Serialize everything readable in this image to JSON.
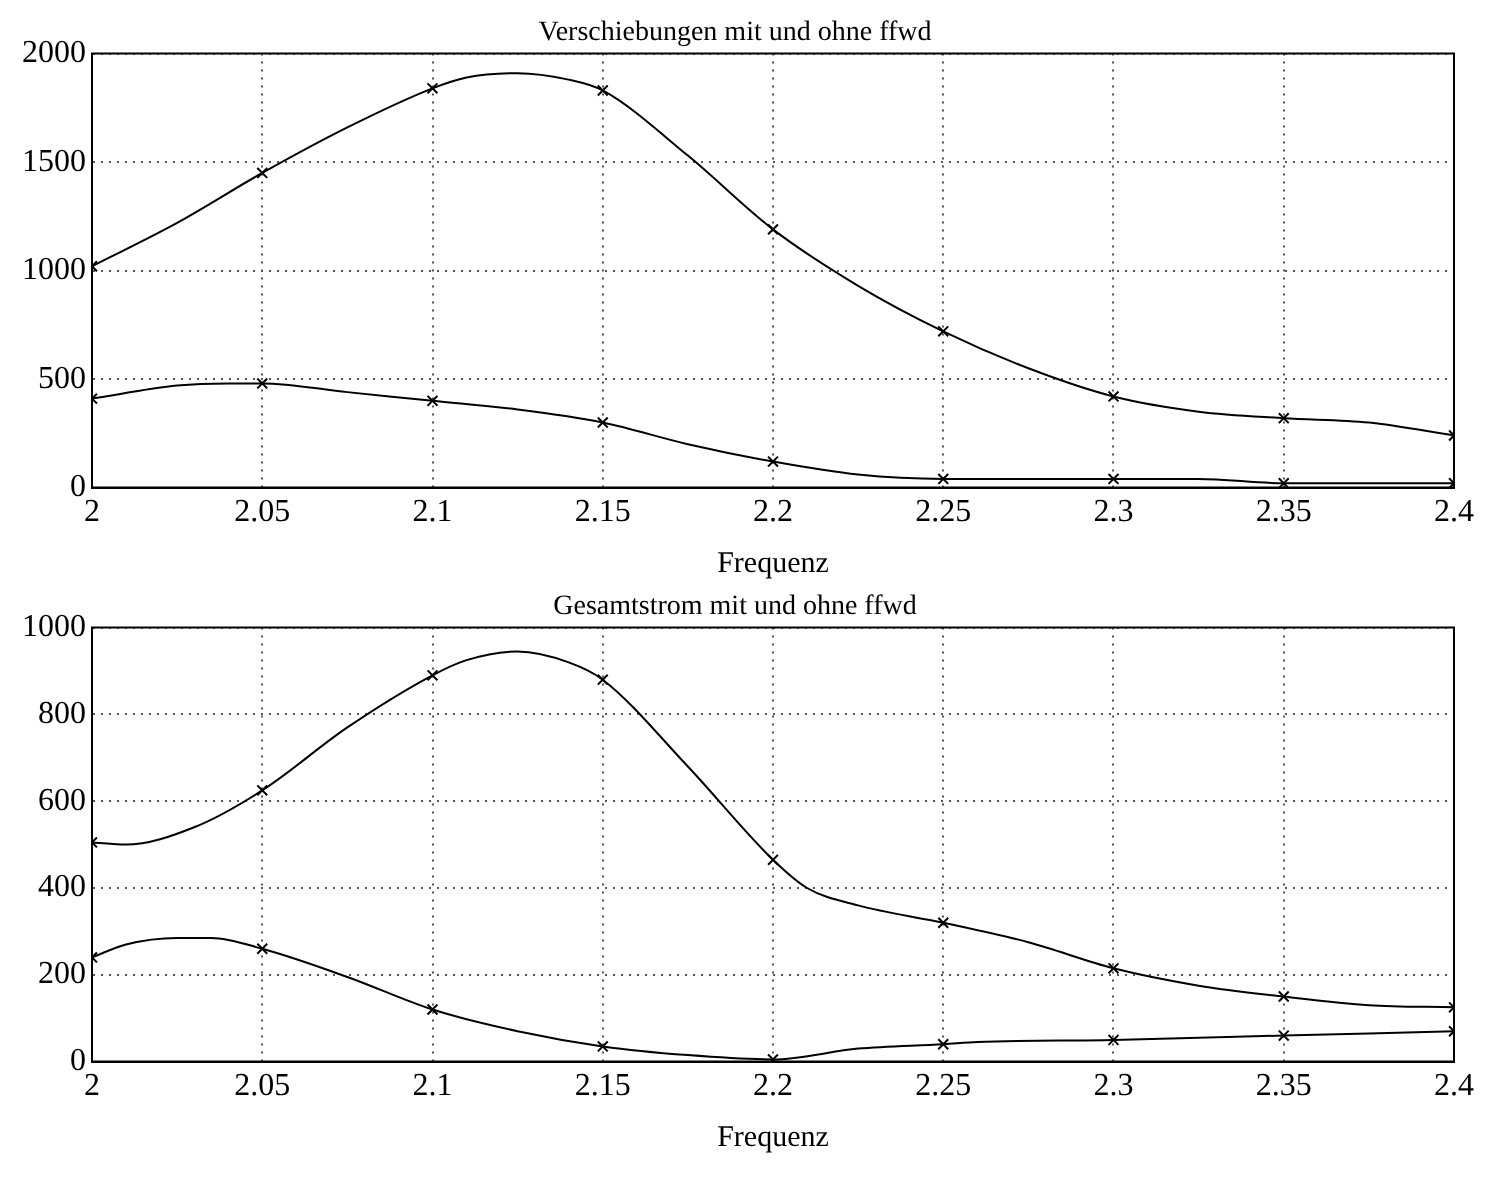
{
  "chart_data": [
    {
      "type": "line",
      "title": "Verschiebungen mit und ohne ffwd",
      "xlabel": "Frequenz",
      "xlim": [
        2,
        2.4
      ],
      "xticks": [
        2,
        2.05,
        2.1,
        2.15,
        2.2,
        2.25,
        2.3,
        2.35,
        2.4
      ],
      "ylim": [
        0,
        2000
      ],
      "yticks": [
        0,
        500,
        1000,
        1500,
        2000
      ],
      "grid": true,
      "series": [
        {
          "color": "#000000",
          "marker": "none",
          "x": [
            2,
            2.025,
            2.05,
            2.075,
            2.1,
            2.11,
            2.125,
            2.14,
            2.15,
            2.175,
            2.2,
            2.225,
            2.25,
            2.275,
            2.3,
            2.325,
            2.35,
            2.375,
            2.4
          ],
          "values": [
            1020,
            1220,
            1450,
            1660,
            1840,
            1890,
            1910,
            1880,
            1830,
            1530,
            1190,
            930,
            720,
            550,
            420,
            350,
            320,
            300,
            240
          ]
        },
        {
          "color": "#000000",
          "marker": "none",
          "x": [
            2,
            2.025,
            2.04,
            2.05,
            2.075,
            2.1,
            2.125,
            2.15,
            2.175,
            2.2,
            2.225,
            2.25,
            2.275,
            2.3,
            2.325,
            2.35,
            2.375,
            2.4
          ],
          "values": [
            410,
            470,
            480,
            480,
            440,
            400,
            360,
            300,
            200,
            120,
            60,
            40,
            40,
            40,
            40,
            20,
            20,
            20
          ]
        },
        {
          "type": "scatter",
          "color": "#000000",
          "marker": "cross",
          "x": [
            2,
            2.05,
            2.1,
            2.15,
            2.2,
            2.25,
            2.3,
            2.35,
            2.4
          ],
          "values": [
            1020,
            1450,
            1840,
            1830,
            1190,
            720,
            420,
            320,
            240
          ]
        },
        {
          "type": "scatter",
          "color": "#000000",
          "marker": "cross",
          "x": [
            2,
            2.05,
            2.1,
            2.15,
            2.2,
            2.25,
            2.3,
            2.35,
            2.4
          ],
          "values": [
            410,
            480,
            400,
            300,
            120,
            40,
            40,
            20,
            20
          ]
        }
      ]
    },
    {
      "type": "line",
      "title": "Gesamtstrom mit und ohne ffwd",
      "xlabel": "Frequenz",
      "xlim": [
        2,
        2.4
      ],
      "xticks": [
        2,
        2.05,
        2.1,
        2.15,
        2.2,
        2.25,
        2.3,
        2.35,
        2.4
      ],
      "ylim": [
        0,
        1000
      ],
      "yticks": [
        0,
        200,
        400,
        600,
        800,
        1000
      ],
      "grid": true,
      "series": [
        {
          "color": "#000000",
          "marker": "none",
          "x": [
            2,
            2.01,
            2.03,
            2.05,
            2.075,
            2.1,
            2.11,
            2.125,
            2.14,
            2.15,
            2.175,
            2.2,
            2.21,
            2.225,
            2.25,
            2.275,
            2.3,
            2.325,
            2.35,
            2.375,
            2.4
          ],
          "values": [
            505,
            500,
            540,
            625,
            770,
            890,
            925,
            945,
            920,
            880,
            680,
            465,
            400,
            360,
            320,
            275,
            215,
            175,
            150,
            130,
            125
          ]
        },
        {
          "color": "#000000",
          "marker": "none",
          "x": [
            2,
            2.01,
            2.025,
            2.035,
            2.05,
            2.075,
            2.1,
            2.125,
            2.15,
            2.175,
            2.2,
            2.225,
            2.25,
            2.26,
            2.3,
            2.35,
            2.4
          ],
          "values": [
            240,
            270,
            285,
            285,
            260,
            195,
            120,
            70,
            35,
            15,
            5,
            30,
            40,
            45,
            50,
            60,
            70
          ]
        },
        {
          "type": "scatter",
          "color": "#000000",
          "marker": "cross",
          "x": [
            2,
            2.05,
            2.1,
            2.15,
            2.2,
            2.25,
            2.3,
            2.35,
            2.4
          ],
          "values": [
            505,
            625,
            890,
            880,
            465,
            320,
            215,
            150,
            125
          ]
        },
        {
          "type": "scatter",
          "color": "#000000",
          "marker": "cross",
          "x": [
            2,
            2.05,
            2.1,
            2.15,
            2.2,
            2.25,
            2.3,
            2.35,
            2.4
          ],
          "values": [
            240,
            260,
            120,
            35,
            5,
            40,
            50,
            60,
            70
          ]
        }
      ]
    }
  ]
}
